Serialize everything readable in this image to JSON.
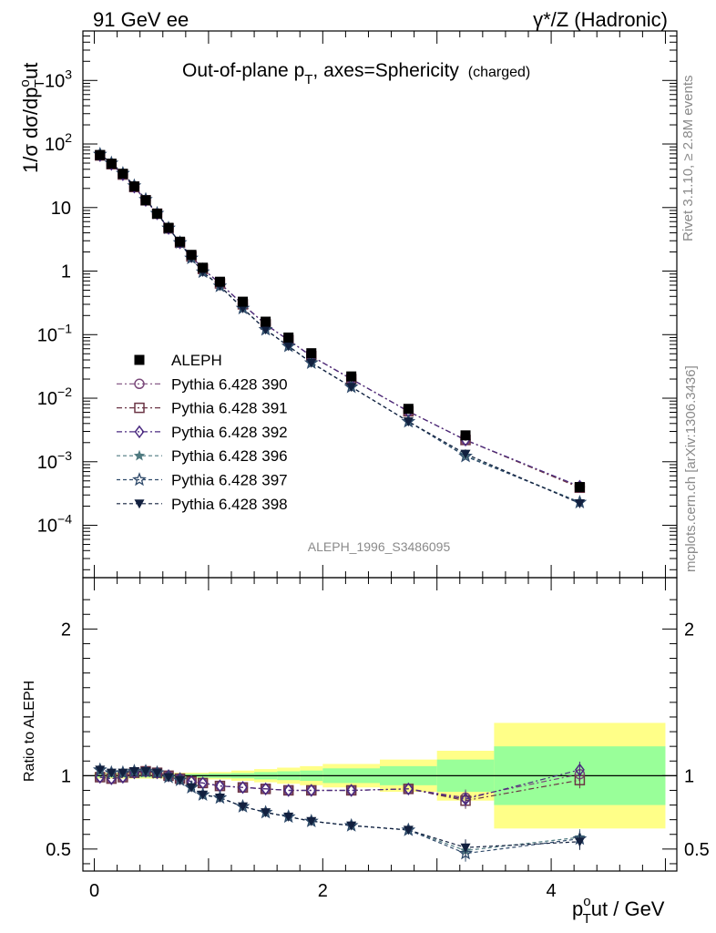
{
  "header": {
    "left": "91 GeV ee",
    "right": "γ*/Z (Hadronic)"
  },
  "title": {
    "main_a": "Out-of-plane p",
    "main_sub": "T",
    "main_b": ", axes=Sphericity",
    "suffix": "(charged)"
  },
  "side_labels": {
    "rivet": "Rivet 3.1.10, ≥ 2.8M events",
    "mcplots": "mcplots.cern.ch [arXiv:1306.3436]"
  },
  "analysis_id": "ALEPH_1996_S3486095",
  "axes": {
    "ylabel_top_a": "1/σ dσ/dp",
    "ylabel_top_sup": "o",
    "ylabel_top_sub": "T",
    "ylabel_top_b": "ut",
    "ylabel_bottom": "Ratio to ALEPH",
    "xlabel_a": "p",
    "xlabel_sup": "o",
    "xlabel_sub": "T",
    "xlabel_b": "ut / GeV"
  },
  "ticks": {
    "x": [
      "0",
      "2",
      "4"
    ],
    "y_top": [
      {
        "base": "10",
        "exp": "3"
      },
      {
        "base": "10",
        "exp": "2"
      },
      {
        "base": "10",
        "exp": ""
      },
      {
        "base": "1",
        "exp": ""
      },
      {
        "base": "10",
        "exp": "−1"
      },
      {
        "base": "10",
        "exp": "−2"
      },
      {
        "base": "10",
        "exp": "−3"
      },
      {
        "base": "10",
        "exp": "−4"
      }
    ],
    "y_ratio": [
      "2",
      "1",
      "0.5"
    ]
  },
  "legend": [
    {
      "label": "ALEPH",
      "color": "#000000",
      "marker": "square-filled",
      "dash": ""
    },
    {
      "label": "Pythia 6.428 390",
      "color": "#7b4a7b",
      "marker": "circle-open",
      "dash": "6,3,2,3"
    },
    {
      "label": "Pythia 6.428 391",
      "color": "#6b3545",
      "marker": "square-open",
      "dash": "6,3,2,3"
    },
    {
      "label": "Pythia 6.428 392",
      "color": "#4a2a80",
      "marker": "diamond-open",
      "dash": "6,3,2,3"
    },
    {
      "label": "Pythia 6.428 396",
      "color": "#4f7a80",
      "marker": "star-filled",
      "dash": "4,3"
    },
    {
      "label": "Pythia 6.428 397",
      "color": "#2f4a6a",
      "marker": "star-open",
      "dash": "4,3"
    },
    {
      "label": "Pythia 6.428 398",
      "color": "#12203f",
      "marker": "triangle-down-filled",
      "dash": "4,3"
    }
  ],
  "chart_data": {
    "type": "scatter",
    "log_y": true,
    "xlim": [
      -0.1,
      5.1
    ],
    "ylim": [
      1.5e-05,
      6000
    ],
    "ratio_ylim": [
      0.35,
      2.35
    ],
    "bins": [
      0.05,
      0.15,
      0.25,
      0.35,
      0.45,
      0.55,
      0.65,
      0.75,
      0.85,
      0.95,
      1.1,
      1.3,
      1.5,
      1.7,
      1.9,
      2.25,
      2.75,
      3.25,
      4.25
    ],
    "series": [
      {
        "name": "ALEPH",
        "values": [
          67,
          49,
          34,
          21.5,
          13,
          8,
          4.8,
          2.9,
          1.8,
          1.13,
          0.68,
          0.33,
          0.16,
          0.09,
          0.051,
          0.022,
          0.0068,
          0.0026,
          0.0004
        ]
      },
      {
        "name": "Pythia 6.428 390",
        "values": [
          66,
          48,
          33,
          21,
          13,
          8,
          4.7,
          2.8,
          1.7,
          1.08,
          0.64,
          0.3,
          0.145,
          0.082,
          0.046,
          0.02,
          0.0062,
          0.0022,
          0.000405
        ]
      },
      {
        "name": "Pythia 6.428 391",
        "values": [
          66,
          48,
          33,
          21,
          13,
          8,
          4.7,
          2.8,
          1.7,
          1.08,
          0.64,
          0.3,
          0.145,
          0.082,
          0.046,
          0.02,
          0.0062,
          0.0022,
          0.00039
        ]
      },
      {
        "name": "Pythia 6.428 392",
        "values": [
          66,
          48,
          33,
          21,
          13,
          8,
          4.7,
          2.8,
          1.7,
          1.08,
          0.64,
          0.3,
          0.145,
          0.082,
          0.046,
          0.02,
          0.0062,
          0.0022,
          0.00041
        ]
      },
      {
        "name": "Pythia 6.428 396",
        "values": [
          69,
          50,
          34.5,
          22,
          13.4,
          8.1,
          4.75,
          2.8,
          1.6,
          0.97,
          0.58,
          0.26,
          0.12,
          0.066,
          0.036,
          0.015,
          0.0043,
          0.00125,
          0.000232
        ]
      },
      {
        "name": "Pythia 6.428 397",
        "values": [
          69,
          50,
          34.5,
          22,
          13.4,
          8.1,
          4.75,
          2.8,
          1.6,
          0.97,
          0.58,
          0.26,
          0.12,
          0.066,
          0.036,
          0.015,
          0.0043,
          0.00122,
          0.00023
        ]
      },
      {
        "name": "Pythia 6.428 398",
        "values": [
          69,
          50,
          34.5,
          22,
          13.4,
          8.1,
          4.75,
          2.8,
          1.6,
          0.97,
          0.58,
          0.26,
          0.12,
          0.066,
          0.036,
          0.015,
          0.0043,
          0.00133,
          0.000221
        ]
      }
    ],
    "ratio": [
      {
        "name": "Pythia 6.428 390",
        "values": [
          0.99,
          0.98,
          0.99,
          1.02,
          1.03,
          1.02,
          1.0,
          0.98,
          0.96,
          0.95,
          0.93,
          0.92,
          0.91,
          0.9,
          0.9,
          0.9,
          0.91,
          0.85,
          1.01
        ]
      },
      {
        "name": "Pythia 6.428 391",
        "values": [
          0.99,
          0.98,
          0.99,
          1.02,
          1.03,
          1.02,
          1.0,
          0.98,
          0.96,
          0.95,
          0.93,
          0.92,
          0.91,
          0.9,
          0.9,
          0.9,
          0.91,
          0.83,
          0.97
        ]
      },
      {
        "name": "Pythia 6.428 392",
        "values": [
          0.99,
          0.98,
          0.99,
          1.02,
          1.03,
          1.02,
          1.0,
          0.98,
          0.96,
          0.95,
          0.93,
          0.92,
          0.91,
          0.9,
          0.9,
          0.9,
          0.91,
          0.84,
          1.04
        ]
      },
      {
        "name": "Pythia 6.428 396",
        "values": [
          1.04,
          1.02,
          1.02,
          1.03,
          1.03,
          1.02,
          0.99,
          0.97,
          0.92,
          0.87,
          0.85,
          0.79,
          0.75,
          0.72,
          0.69,
          0.66,
          0.63,
          0.49,
          0.58
        ]
      },
      {
        "name": "Pythia 6.428 397",
        "values": [
          1.04,
          1.02,
          1.02,
          1.03,
          1.03,
          1.02,
          0.99,
          0.97,
          0.92,
          0.87,
          0.85,
          0.79,
          0.75,
          0.72,
          0.69,
          0.66,
          0.63,
          0.47,
          0.57
        ]
      },
      {
        "name": "Pythia 6.428 398",
        "values": [
          1.04,
          1.02,
          1.02,
          1.03,
          1.03,
          1.02,
          0.99,
          0.97,
          0.92,
          0.87,
          0.85,
          0.79,
          0.75,
          0.72,
          0.69,
          0.66,
          0.63,
          0.51,
          0.55
        ]
      }
    ],
    "bands": [
      {
        "x": [
          0.0,
          0.5
        ],
        "green": 0.012,
        "yellow": 0.02
      },
      {
        "x": [
          0.5,
          1.0
        ],
        "green": 0.012,
        "yellow": 0.02
      },
      {
        "x": [
          1.0,
          1.2
        ],
        "green": 0.015,
        "yellow": 0.025
      },
      {
        "x": [
          1.2,
          1.4
        ],
        "green": 0.018,
        "yellow": 0.035
      },
      {
        "x": [
          1.4,
          1.6
        ],
        "green": 0.025,
        "yellow": 0.045
      },
      {
        "x": [
          1.6,
          1.8
        ],
        "green": 0.03,
        "yellow": 0.055
      },
      {
        "x": [
          1.8,
          2.0
        ],
        "green": 0.035,
        "yellow": 0.065
      },
      {
        "x": [
          2.0,
          2.5
        ],
        "green": 0.05,
        "yellow": 0.08
      },
      {
        "x": [
          2.5,
          3.0
        ],
        "green": 0.065,
        "yellow": 0.11
      },
      {
        "x": [
          3.0,
          3.5
        ],
        "green": 0.11,
        "yellow": 0.17
      },
      {
        "x": [
          3.5,
          5.0
        ],
        "green": 0.2,
        "yellow": 0.36
      }
    ]
  }
}
